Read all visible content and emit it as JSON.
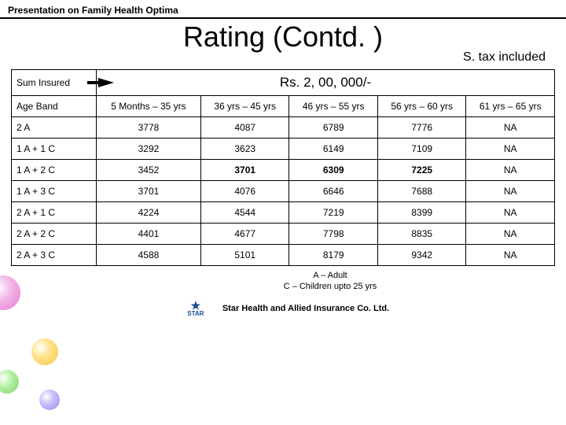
{
  "header": {
    "breadcrumb": "Presentation on Family Health Optima"
  },
  "title": "Rating (Contd. )",
  "subtitle": "S. tax included",
  "table": {
    "sum_insured_label": "Sum Insured",
    "sum_insured_value": "Rs. 2, 00, 000/-",
    "age_band_label": "Age Band",
    "columns": [
      "5 Months – 35 yrs",
      "36 yrs – 45 yrs",
      "46 yrs – 55 yrs",
      "56 yrs – 60 yrs",
      "61 yrs – 65 yrs"
    ],
    "rows": [
      {
        "label": "2 A",
        "cells": [
          "3778",
          "4087",
          "6789",
          "7776",
          "NA"
        ],
        "bold_cells": []
      },
      {
        "label": "1 A + 1 C",
        "cells": [
          "3292",
          "3623",
          "6149",
          "7109",
          "NA"
        ],
        "bold_cells": []
      },
      {
        "label": "1 A + 2 C",
        "cells": [
          "3452",
          "3701",
          "6309",
          "7225",
          "NA"
        ],
        "bold_cells": [
          1,
          2,
          3
        ]
      },
      {
        "label": "1 A + 3 C",
        "cells": [
          "3701",
          "4076",
          "6646",
          "7688",
          "NA"
        ],
        "bold_cells": []
      },
      {
        "label": "2 A + 1 C",
        "cells": [
          "4224",
          "4544",
          "7219",
          "8399",
          "NA"
        ],
        "bold_cells": []
      },
      {
        "label": "2 A + 2 C",
        "cells": [
          "4401",
          "4677",
          "7798",
          "8835",
          "NA"
        ],
        "bold_cells": []
      },
      {
        "label": "2 A + 3 C",
        "cells": [
          "4588",
          "5101",
          "8179",
          "9342",
          "NA"
        ],
        "bold_cells": []
      }
    ]
  },
  "legend": {
    "line1": "A – Adult",
    "line2": "C – Children upto 25 yrs"
  },
  "footer": {
    "logo_text": "STAR",
    "company": "Star Health and Allied Insurance Co. Ltd."
  }
}
